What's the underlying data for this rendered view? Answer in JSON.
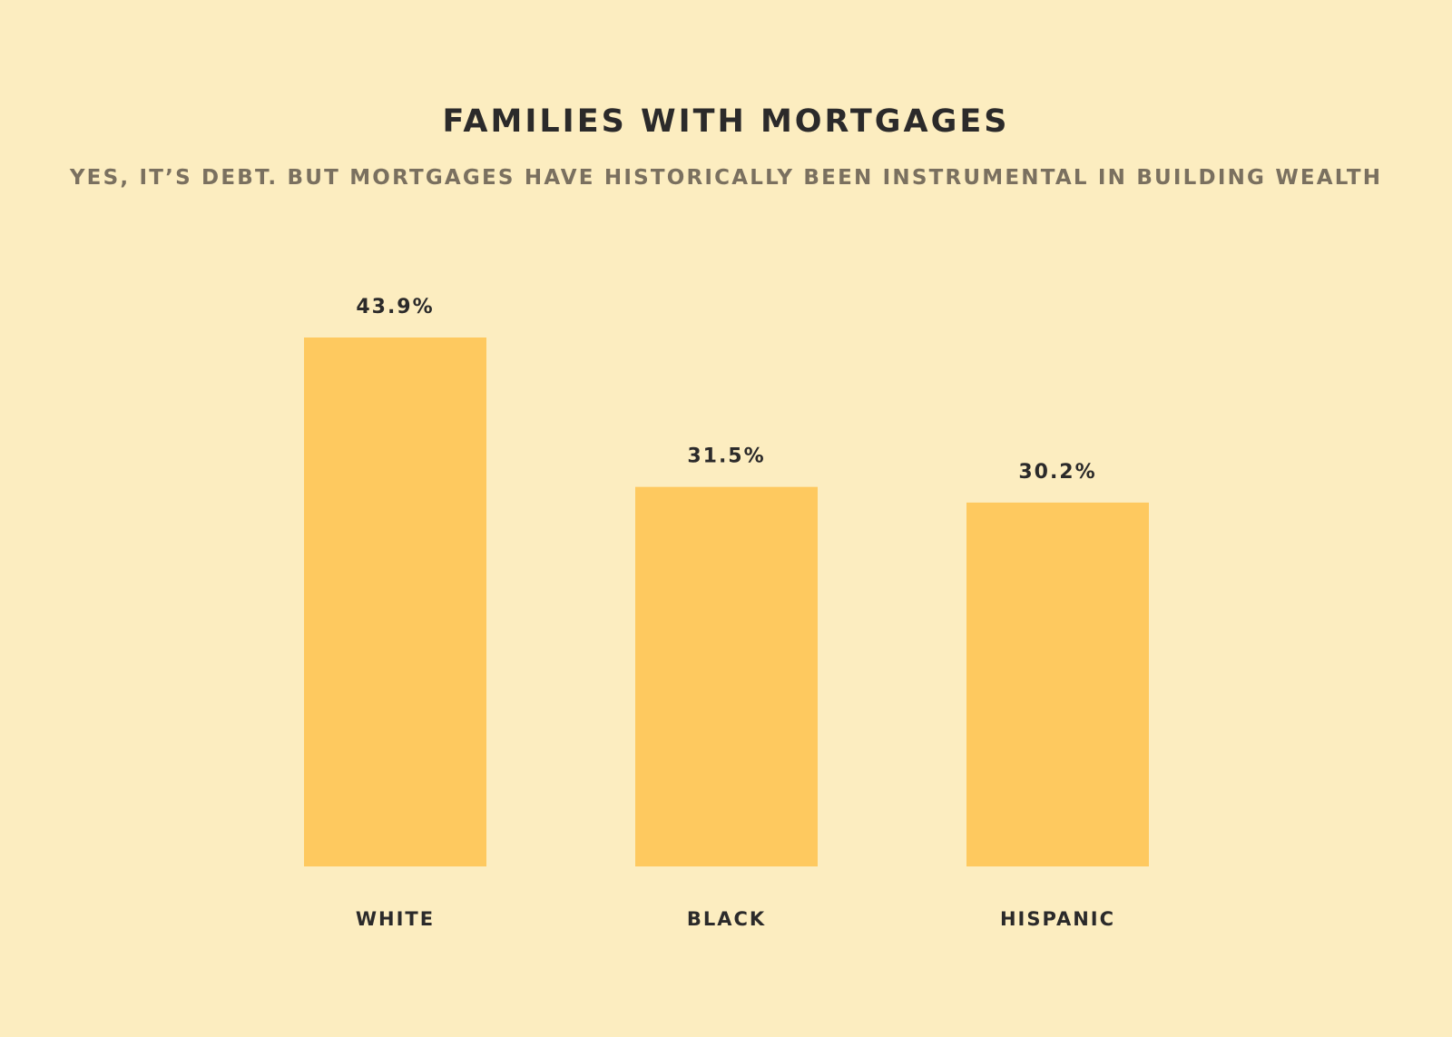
{
  "chart_data": {
    "type": "bar",
    "title": "FAMILIES WITH MORTGAGES",
    "subtitle": "YES, IT’S DEBT. BUT MORTGAGES HAVE HISTORICALLY BEEN INSTRUMENTAL IN BUILDING WEALTH",
    "categories": [
      "WHITE",
      "BLACK",
      "HISPANIC"
    ],
    "values": [
      43.9,
      31.5,
      30.2
    ],
    "value_labels": [
      "43.9%",
      "31.5%",
      "30.2%"
    ],
    "xlabel": "",
    "ylabel": "",
    "ylim": [
      0,
      43.9
    ],
    "grid": false,
    "legend": "none",
    "colors": {
      "bar": "#fec95f",
      "background": "#fcedc0",
      "text": "#2b2a2a",
      "subtitle": "#7a705f"
    }
  }
}
